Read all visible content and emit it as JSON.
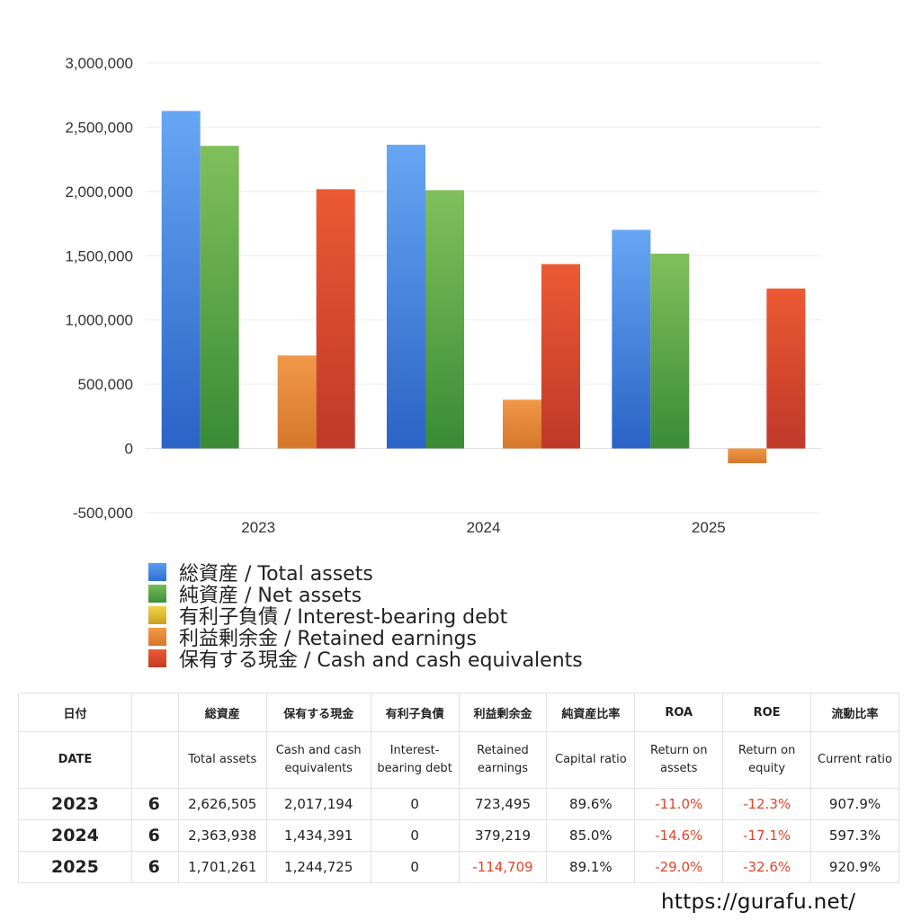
{
  "chart_data": {
    "type": "bar",
    "categories": [
      "2023",
      "2024",
      "2025"
    ],
    "series": [
      {
        "name": "総資産 / Total assets",
        "values": [
          2626505,
          2363938,
          1701261
        ],
        "color": "#3d7fe0"
      },
      {
        "name": "純資産 / Net assets",
        "values": [
          2355000,
          2010000,
          1516000
        ],
        "color": "#4fa647"
      },
      {
        "name": "有利子負債 / Interest-bearing debt",
        "values": [
          0,
          0,
          0
        ],
        "color": "#d9b42b"
      },
      {
        "name": "利益剰余金 / Retained earnings",
        "values": [
          723495,
          379219,
          -114709
        ],
        "color": "#e2802e"
      },
      {
        "name": "保有する現金 /  Cash and cash equivalents",
        "values": [
          2017194,
          1434391,
          1244725
        ],
        "color": "#d8432a"
      }
    ],
    "yticks": [
      "3,000,000",
      "2,500,000",
      "2,000,000",
      "1,500,000",
      "1,000,000",
      "500,000",
      "0",
      "-500,000"
    ],
    "ylim": [
      -500000,
      3000000
    ],
    "grid": true,
    "legend_position": "bottom"
  },
  "table": {
    "header_jp": [
      "日付",
      "",
      "総資産",
      "保有する現金",
      "有利子負債",
      "利益剰余金",
      "純資産比率",
      "ROA",
      "ROE",
      "流動比率"
    ],
    "header_en": [
      "DATE",
      "",
      "Total assets",
      "Cash and cash equivalents",
      "Interest-bearing debt",
      "Retained earnings",
      "Capital ratio",
      "Return on assets",
      "Return on equity",
      "Current ratio"
    ],
    "rows": [
      {
        "year": "2023",
        "month": "6",
        "total_assets": "2,626,505",
        "cash": "2,017,194",
        "debt": "0",
        "retained": "723,495",
        "capital_ratio": "89.6%",
        "roa": "-11.0%",
        "roe": "-12.3%",
        "current_ratio": "907.9%"
      },
      {
        "year": "2024",
        "month": "6",
        "total_assets": "2,363,938",
        "cash": "1,434,391",
        "debt": "0",
        "retained": "379,219",
        "capital_ratio": "85.0%",
        "roa": "-14.6%",
        "roe": "-17.1%",
        "current_ratio": "597.3%"
      },
      {
        "year": "2025",
        "month": "6",
        "total_assets": "1,701,261",
        "cash": "1,244,725",
        "debt": "0",
        "retained": "-114,709",
        "capital_ratio": "89.1%",
        "roa": "-29.0%",
        "roe": "-32.6%",
        "current_ratio": "920.9%"
      }
    ]
  },
  "footer": {
    "url": "https://gurafu.net/"
  }
}
